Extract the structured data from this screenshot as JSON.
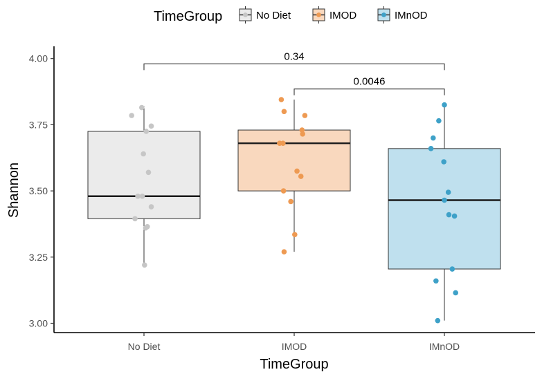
{
  "chart_data": {
    "type": "box",
    "title": "",
    "xlabel": "TimeGroup",
    "ylabel": "Shannon",
    "ylim": [
      2.97,
      4.06
    ],
    "yticks": [
      3.0,
      3.25,
      3.5,
      3.75,
      4.0
    ],
    "ytick_labels": [
      "3.00",
      "3.25",
      "3.50",
      "3.75",
      "4.00"
    ],
    "legend": {
      "title": "TimeGroup",
      "position": "top",
      "entries": [
        "No Diet",
        "IMOD",
        "IMnOD"
      ]
    },
    "groups": [
      {
        "name": "No Diet",
        "fill": "#ebebeb",
        "point_color": "#c6c6c6",
        "q1": 3.395,
        "median": 3.48,
        "q3": 3.725,
        "whisker_low": 3.22,
        "whisker_high": 3.82,
        "points": [
          {
            "j": -0.22,
            "v": 3.785
          },
          {
            "j": -0.04,
            "v": 3.815
          },
          {
            "j": 0.04,
            "v": 3.725
          },
          {
            "j": 0.13,
            "v": 3.745
          },
          {
            "j": -0.01,
            "v": 3.64
          },
          {
            "j": 0.08,
            "v": 3.57
          },
          {
            "j": -0.11,
            "v": 3.48
          },
          {
            "j": -0.03,
            "v": 3.48
          },
          {
            "j": 0.13,
            "v": 3.44
          },
          {
            "j": -0.16,
            "v": 3.395
          },
          {
            "j": 0.03,
            "v": 3.36
          },
          {
            "j": 0.06,
            "v": 3.365
          },
          {
            "j": 0.01,
            "v": 3.22
          }
        ]
      },
      {
        "name": "IMOD",
        "fill": "#f9d8be",
        "point_color": "#ee9a52",
        "q1": 3.5,
        "median": 3.68,
        "q3": 3.73,
        "whisker_low": 3.27,
        "whisker_high": 3.845,
        "points": [
          {
            "j": -0.23,
            "v": 3.845
          },
          {
            "j": -0.18,
            "v": 3.8
          },
          {
            "j": 0.19,
            "v": 3.785
          },
          {
            "j": 0.14,
            "v": 3.73
          },
          {
            "j": 0.15,
            "v": 3.715
          },
          {
            "j": -0.26,
            "v": 3.68
          },
          {
            "j": -0.2,
            "v": 3.68
          },
          {
            "j": 0.05,
            "v": 3.575
          },
          {
            "j": 0.12,
            "v": 3.555
          },
          {
            "j": -0.19,
            "v": 3.5
          },
          {
            "j": -0.06,
            "v": 3.46
          },
          {
            "j": 0.01,
            "v": 3.335
          },
          {
            "j": -0.18,
            "v": 3.27
          }
        ]
      },
      {
        "name": "IMnOD",
        "fill": "#bfe0ee",
        "point_color": "#3ea1c8",
        "q1": 3.205,
        "median": 3.465,
        "q3": 3.66,
        "whisker_low": 3.01,
        "whisker_high": 3.825,
        "points": [
          {
            "j": 0.0,
            "v": 3.825
          },
          {
            "j": -0.1,
            "v": 3.765
          },
          {
            "j": -0.2,
            "v": 3.7
          },
          {
            "j": -0.24,
            "v": 3.66
          },
          {
            "j": -0.01,
            "v": 3.61
          },
          {
            "j": 0.07,
            "v": 3.495
          },
          {
            "j": 0.0,
            "v": 3.465
          },
          {
            "j": 0.08,
            "v": 3.41
          },
          {
            "j": 0.18,
            "v": 3.405
          },
          {
            "j": 0.14,
            "v": 3.205
          },
          {
            "j": -0.15,
            "v": 3.16
          },
          {
            "j": 0.2,
            "v": 3.115
          },
          {
            "j": -0.12,
            "v": 3.01
          }
        ]
      }
    ],
    "comparisons": [
      {
        "from": "No Diet",
        "to": "IMnOD",
        "label": "0.34",
        "y": 3.98
      },
      {
        "from": "IMOD",
        "to": "IMnOD",
        "label": "0.0046",
        "y": 3.885
      }
    ]
  }
}
